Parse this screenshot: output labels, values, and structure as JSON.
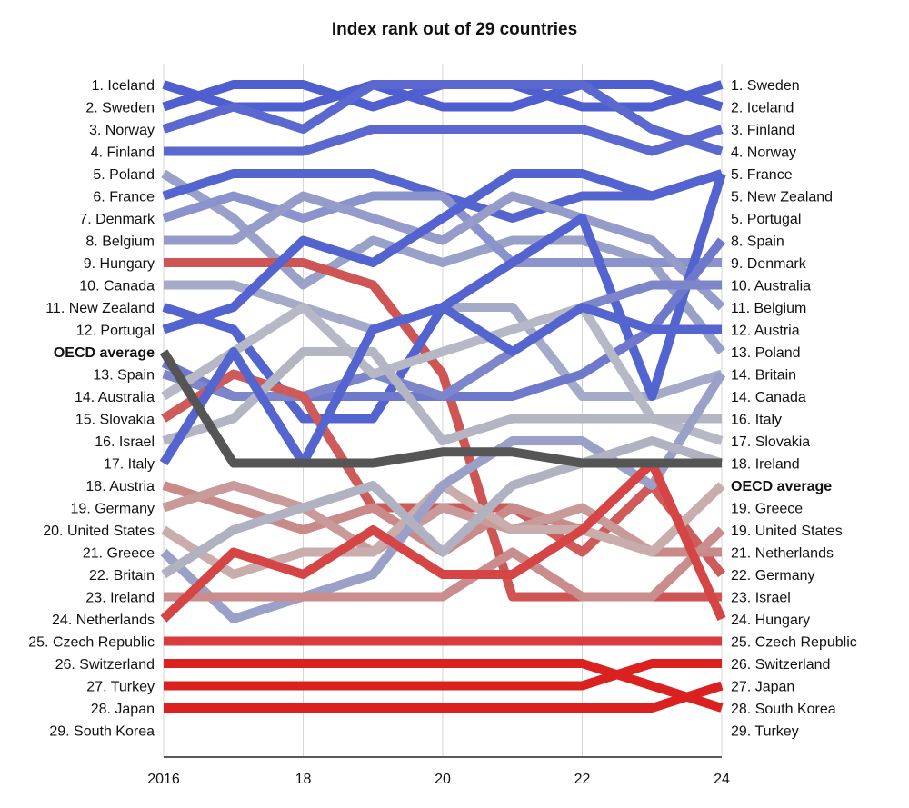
{
  "chart_data": {
    "type": "line",
    "title": "Index rank out of 29 countries",
    "x": [
      2016,
      2017,
      2018,
      2019,
      2020,
      2021,
      2022,
      2023,
      2024
    ],
    "x_tick_labels": [
      "2016",
      "18",
      "20",
      "22",
      "24"
    ],
    "x_tick_values": [
      2016,
      2018,
      2020,
      2022,
      2024
    ],
    "y_inverted": true,
    "ylim": [
      1,
      30
    ],
    "grid": "vertical",
    "left_labels": [
      "1. Iceland",
      "2. Sweden",
      "3. Norway",
      "4. Finland",
      "5. Poland",
      "6. France",
      "7. Denmark",
      "8. Belgium",
      "9. Hungary",
      "10. Canada",
      "11. New Zealand",
      "12. Portugal",
      "OECD average",
      "13. Spain",
      "14. Australia",
      "15. Slovakia",
      "16. Israel",
      "17. Italy",
      "18. Austria",
      "19. Germany",
      "20. United States",
      "21. Greece",
      "22. Britain",
      "23. Ireland",
      "24. Netherlands",
      "25. Czech Republic",
      "26. Switzerland",
      "27. Turkey",
      "28. Japan",
      "29. South Korea"
    ],
    "right_labels": [
      "1. Sweden",
      "2. Iceland",
      "3. Finland",
      "4. Norway",
      "5. France",
      "5. New Zealand",
      "5. Portugal",
      "8. Spain",
      "9. Denmark",
      "10. Australia",
      "11. Belgium",
      "12. Austria",
      "13. Poland",
      "14. Britain",
      "14. Canada",
      "16. Italy",
      "17. Slovakia",
      "18. Ireland",
      "OECD average",
      "19. Greece",
      "19. United States",
      "21. Netherlands",
      "22. Germany",
      "23. Israel",
      "24. Hungary",
      "25. Czech Republic",
      "26. Switzerland",
      "27. Japan",
      "28. South Korea",
      "29. Turkey"
    ],
    "series": [
      {
        "name": "Iceland",
        "color": "#4f5fcf",
        "values": [
          1,
          2,
          2,
          1,
          2,
          2,
          1,
          1,
          2
        ]
      },
      {
        "name": "Sweden",
        "color": "#4f5fcf",
        "values": [
          2,
          1,
          1,
          2,
          1,
          1,
          2,
          2,
          1
        ]
      },
      {
        "name": "Norway",
        "color": "#5a68cf",
        "values": [
          3,
          2,
          3,
          1,
          1,
          1,
          1,
          3,
          4
        ]
      },
      {
        "name": "Finland",
        "color": "#5a68cf",
        "values": [
          4,
          4,
          4,
          3,
          3,
          3,
          3,
          4,
          3
        ]
      },
      {
        "name": "Poland",
        "color": "#9aa1c9",
        "values": [
          5,
          7,
          10,
          8,
          9,
          8,
          8,
          9,
          13
        ]
      },
      {
        "name": "France",
        "color": "#5565cf",
        "values": [
          6,
          5,
          5,
          5,
          6,
          7,
          6,
          6,
          5
        ]
      },
      {
        "name": "Denmark",
        "color": "#8a93cb",
        "values": [
          7,
          6,
          7,
          6,
          6,
          9,
          9,
          9,
          9
        ]
      },
      {
        "name": "Belgium",
        "color": "#959cca",
        "values": [
          8,
          8,
          6,
          7,
          8,
          6,
          7,
          8,
          11
        ]
      },
      {
        "name": "Hungary",
        "color": "#cf5555",
        "values": [
          9,
          9,
          9,
          10,
          14,
          24,
          24,
          24,
          24
        ]
      },
      {
        "name": "Canada",
        "color": "#a4aac8",
        "values": [
          10,
          10,
          11,
          12,
          11,
          11,
          15,
          15,
          14
        ]
      },
      {
        "name": "New Zealand",
        "color": "#5363cf",
        "values": [
          11,
          12,
          16,
          16,
          11,
          9,
          7,
          15,
          5
        ]
      },
      {
        "name": "Portugal",
        "color": "#5363cf",
        "values": [
          12,
          11,
          8,
          9,
          7,
          5,
          5,
          6,
          5
        ]
      },
      {
        "name": "OECD average",
        "color": "#555555",
        "values": [
          13,
          18,
          18,
          18,
          17.5,
          17.5,
          18,
          18,
          18
        ]
      },
      {
        "name": "Spain",
        "color": "#6e79cc",
        "values": [
          13.5,
          15,
          15,
          15,
          15,
          15,
          14,
          12,
          8
        ]
      },
      {
        "name": "Australia",
        "color": "#7d86cb",
        "values": [
          14,
          15,
          15,
          14,
          15,
          13,
          11,
          10,
          10
        ]
      },
      {
        "name": "Slovakia",
        "color": "#b6b8c6",
        "values": [
          15,
          13,
          11,
          14,
          13,
          12,
          11,
          16,
          17
        ]
      },
      {
        "name": "Israel",
        "color": "#cf5a5a",
        "values": [
          16,
          14,
          15,
          20,
          20,
          20,
          22,
          19,
          23
        ]
      },
      {
        "name": "Italy",
        "color": "#b3b5c3",
        "values": [
          17,
          16,
          13,
          13,
          17,
          16,
          16,
          16,
          16
        ]
      },
      {
        "name": "Austria",
        "color": "#5565cf",
        "values": [
          18,
          13,
          18,
          12,
          11,
          13,
          11,
          12,
          12
        ]
      },
      {
        "name": "Germany",
        "color": "#c98a8a",
        "values": [
          19,
          20,
          21,
          20,
          22,
          20,
          21,
          22,
          22
        ]
      },
      {
        "name": "United States",
        "color": "#c99a9a",
        "values": [
          20,
          19,
          20,
          22,
          20,
          21,
          20,
          22,
          19
        ]
      },
      {
        "name": "Greece",
        "color": "#c9adad",
        "values": [
          21,
          23,
          22,
          22,
          19,
          21,
          21,
          22,
          19
        ]
      },
      {
        "name": "Britain",
        "color": "#9aa0c8",
        "values": [
          22,
          25,
          24,
          23,
          19,
          17,
          17,
          19,
          14
        ]
      },
      {
        "name": "Ireland",
        "color": "#b0b2c2",
        "values": [
          23,
          21,
          20,
          19,
          22,
          19,
          18,
          17,
          18
        ]
      },
      {
        "name": "Netherlands",
        "color": "#c98d8d",
        "values": [
          24,
          24,
          24,
          24,
          24,
          22,
          24,
          24,
          21
        ]
      },
      {
        "name": "Czech Republic",
        "color": "#d64545",
        "values": [
          25,
          22,
          23,
          21,
          23,
          23,
          21,
          18,
          25
        ]
      },
      {
        "name": "Switzerland",
        "color": "#d93c3c",
        "values": [
          26,
          26,
          26,
          26,
          26,
          26,
          26,
          26,
          26
        ]
      },
      {
        "name": "Turkey",
        "color": "#db2020",
        "values": [
          27,
          27,
          27,
          27,
          27,
          27,
          27,
          28,
          29
        ]
      },
      {
        "name": "Japan",
        "color": "#db2020",
        "values": [
          28,
          28,
          28,
          28,
          28,
          28,
          28,
          27,
          27
        ]
      },
      {
        "name": "South Korea",
        "color": "#db2020",
        "values": [
          29,
          29,
          29,
          29,
          29,
          29,
          29,
          29,
          28
        ]
      }
    ]
  }
}
